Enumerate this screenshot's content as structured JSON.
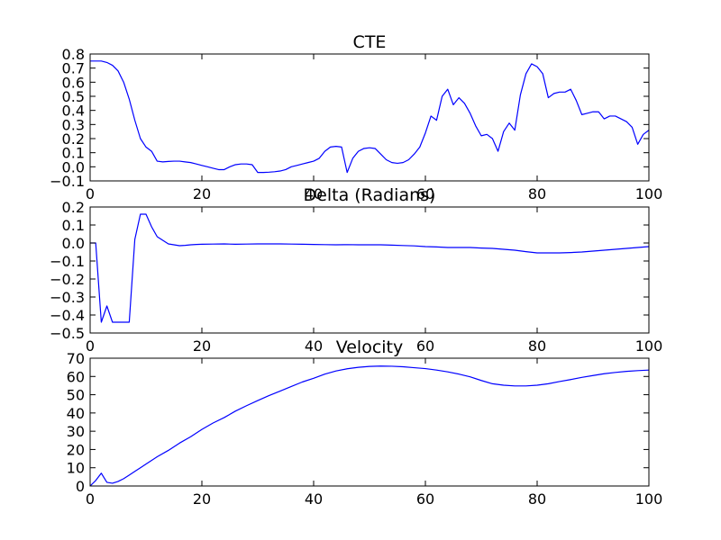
{
  "chart_data": [
    {
      "type": "line",
      "title": "CTE",
      "xlabel": "",
      "ylabel": "",
      "xlim": [
        0,
        100
      ],
      "ylim": [
        -0.1,
        0.8
      ],
      "xticks": [
        0,
        20,
        40,
        60,
        80,
        100
      ],
      "xtick_labels": [
        "0",
        "20",
        "40",
        "60",
        "80",
        "100"
      ],
      "yticks": [
        -0.1,
        0.0,
        0.1,
        0.2,
        0.3,
        0.4,
        0.5,
        0.6,
        0.7,
        0.8
      ],
      "ytick_labels": [
        "−0.1",
        "0.0",
        "0.1",
        "0.2",
        "0.3",
        "0.4",
        "0.5",
        "0.6",
        "0.7",
        "0.8"
      ],
      "color": "#0000ff",
      "series": [
        {
          "x": [
            0,
            1,
            2,
            3,
            4,
            5,
            6,
            7,
            8,
            9,
            10,
            11,
            12,
            13,
            14,
            15,
            16,
            17,
            18,
            19,
            20,
            21,
            22,
            23,
            24,
            25,
            26,
            27,
            28,
            29,
            30,
            31,
            32,
            33,
            34,
            35,
            36,
            37,
            38,
            39,
            40,
            41,
            42,
            43,
            44,
            45,
            46,
            47,
            48,
            49,
            50,
            51,
            52,
            53,
            54,
            55,
            56,
            57,
            58,
            59,
            60,
            61,
            62,
            63,
            64,
            65,
            66,
            67,
            68,
            69,
            70,
            71,
            72,
            73,
            74,
            75,
            76,
            77,
            78,
            79,
            80,
            81,
            82,
            83,
            84,
            85,
            86,
            87,
            88,
            89,
            90,
            91,
            92,
            93,
            94,
            95,
            96,
            97,
            98,
            99,
            100
          ],
          "values": [
            0.75,
            0.75,
            0.75,
            0.74,
            0.72,
            0.68,
            0.6,
            0.48,
            0.33,
            0.2,
            0.14,
            0.11,
            0.04,
            0.035,
            0.038,
            0.04,
            0.04,
            0.035,
            0.03,
            0.02,
            0.01,
            0.0,
            -0.01,
            -0.02,
            -0.02,
            0.0,
            0.015,
            0.02,
            0.02,
            0.015,
            -0.04,
            -0.04,
            -0.038,
            -0.035,
            -0.03,
            -0.02,
            0.0,
            0.01,
            0.02,
            0.03,
            0.04,
            0.06,
            0.11,
            0.14,
            0.145,
            0.14,
            -0.04,
            0.06,
            0.11,
            0.13,
            0.135,
            0.13,
            0.09,
            0.05,
            0.03,
            0.025,
            0.03,
            0.05,
            0.09,
            0.14,
            0.24,
            0.36,
            0.33,
            0.5,
            0.55,
            0.44,
            0.49,
            0.45,
            0.38,
            0.29,
            0.22,
            0.23,
            0.2,
            0.11,
            0.25,
            0.31,
            0.26,
            0.51,
            0.66,
            0.73,
            0.71,
            0.66,
            0.49,
            0.52,
            0.53,
            0.53,
            0.55,
            0.47,
            0.37,
            0.38,
            0.39,
            0.39,
            0.34,
            0.36,
            0.36,
            0.34,
            0.32,
            0.28,
            0.16,
            0.23,
            0.26
          ]
        }
      ]
    },
    {
      "type": "line",
      "title": "Delta (Radians)",
      "xlabel": "",
      "ylabel": "",
      "xlim": [
        0,
        100
      ],
      "ylim": [
        -0.5,
        0.2
      ],
      "xticks": [
        0,
        20,
        40,
        60,
        80,
        100
      ],
      "xtick_labels": [
        "0",
        "20",
        "40",
        "60",
        "80",
        "100"
      ],
      "yticks": [
        -0.5,
        -0.4,
        -0.3,
        -0.2,
        -0.1,
        0.0,
        0.1,
        0.2
      ],
      "ytick_labels": [
        "−0.5",
        "−0.4",
        "−0.3",
        "−0.2",
        "−0.1",
        "0.0",
        "0.1",
        "0.2"
      ],
      "color": "#0000ff",
      "series": [
        {
          "x": [
            0,
            1,
            2,
            3,
            4,
            5,
            6,
            7,
            8,
            9,
            10,
            11,
            12,
            13,
            14,
            15,
            16,
            17,
            18,
            19,
            20,
            22,
            24,
            26,
            28,
            30,
            32,
            34,
            36,
            38,
            40,
            42,
            44,
            46,
            48,
            50,
            52,
            54,
            56,
            58,
            60,
            62,
            64,
            66,
            68,
            70,
            72,
            74,
            76,
            78,
            80,
            82,
            84,
            86,
            88,
            90,
            92,
            94,
            96,
            98,
            100
          ],
          "values": [
            0.0,
            0.0,
            -0.44,
            -0.35,
            -0.44,
            -0.44,
            -0.44,
            -0.44,
            0.02,
            0.16,
            0.16,
            0.09,
            0.035,
            0.015,
            -0.005,
            -0.01,
            -0.015,
            -0.013,
            -0.01,
            -0.008,
            -0.007,
            -0.006,
            -0.005,
            -0.007,
            -0.006,
            -0.005,
            -0.005,
            -0.005,
            -0.006,
            -0.007,
            -0.008,
            -0.009,
            -0.01,
            -0.009,
            -0.01,
            -0.01,
            -0.01,
            -0.012,
            -0.014,
            -0.016,
            -0.02,
            -0.022,
            -0.025,
            -0.025,
            -0.025,
            -0.028,
            -0.03,
            -0.035,
            -0.04,
            -0.048,
            -0.055,
            -0.055,
            -0.055,
            -0.053,
            -0.05,
            -0.045,
            -0.04,
            -0.035,
            -0.03,
            -0.025,
            -0.02
          ]
        }
      ]
    },
    {
      "type": "line",
      "title": "Velocity",
      "xlabel": "",
      "ylabel": "",
      "xlim": [
        0,
        100
      ],
      "ylim": [
        0,
        70
      ],
      "xticks": [
        0,
        20,
        40,
        60,
        80,
        100
      ],
      "xtick_labels": [
        "0",
        "20",
        "40",
        "60",
        "80",
        "100"
      ],
      "yticks": [
        0,
        10,
        20,
        30,
        40,
        50,
        60,
        70
      ],
      "ytick_labels": [
        "0",
        "10",
        "20",
        "30",
        "40",
        "50",
        "60",
        "70"
      ],
      "color": "#0000ff",
      "series": [
        {
          "x": [
            0,
            1,
            2,
            3,
            4,
            5,
            6,
            7,
            8,
            9,
            10,
            12,
            14,
            16,
            18,
            20,
            22,
            24,
            26,
            28,
            30,
            32,
            34,
            36,
            38,
            40,
            42,
            44,
            46,
            48,
            50,
            52,
            54,
            56,
            58,
            60,
            62,
            64,
            66,
            68,
            70,
            72,
            74,
            76,
            78,
            80,
            82,
            84,
            86,
            88,
            90,
            92,
            94,
            96,
            98,
            100
          ],
          "values": [
            0,
            3,
            7,
            2,
            1.5,
            2.5,
            4,
            6,
            8,
            10,
            12,
            16,
            19.5,
            23.5,
            27,
            31,
            34.5,
            37.5,
            41,
            44,
            46.8,
            49.5,
            52,
            54.5,
            57,
            59,
            61.3,
            63,
            64.2,
            65,
            65.5,
            65.7,
            65.6,
            65.3,
            64.8,
            64.3,
            63.5,
            62.5,
            61.3,
            59.8,
            57.8,
            56,
            55.2,
            54.8,
            54.8,
            55.2,
            56,
            57.2,
            58.3,
            59.5,
            60.5,
            61.5,
            62.2,
            62.8,
            63.2,
            63.5
          ]
        }
      ]
    }
  ]
}
